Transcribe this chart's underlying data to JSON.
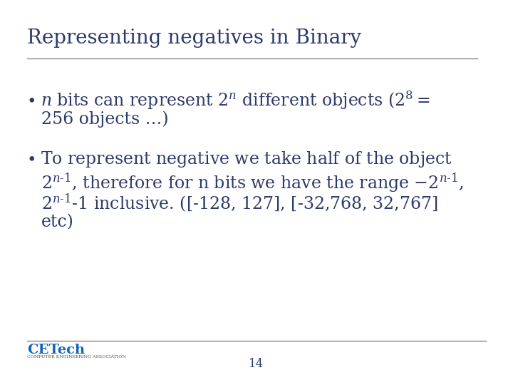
{
  "title": "Representing negatives in Binary",
  "title_color": "#2E3A6B",
  "title_fontsize": 20,
  "background_color": "#FFFFFF",
  "text_color": "#2E3A6B",
  "page_number": "14",
  "font_family": "DejaVu Serif",
  "bullet_fontsize": 17,
  "header_line_color": "#888888",
  "footer_line_color": "#888888",
  "logo_text": "CETech",
  "logo_sub": "COMPUTER ENGINEERING ASSOCIATION",
  "logo_color": "#1565C0",
  "logo_sub_color": "#555555"
}
